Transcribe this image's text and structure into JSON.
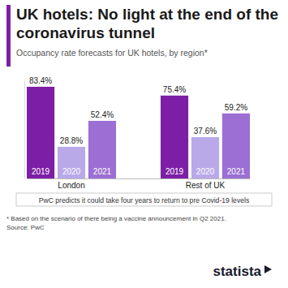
{
  "chart_data": {
    "type": "bar",
    "title": "UK hotels: No light at the end of the coronavirus tunnel",
    "subtitle": "Occupancy rate forecasts for UK hotels, by region*",
    "categories": [
      "London",
      "Rest of UK"
    ],
    "series": [
      {
        "name": "2019",
        "color": "#7d1fa6",
        "values": [
          83.4,
          75.4
        ],
        "value_labels": [
          "83.4%",
          "75.4%"
        ]
      },
      {
        "name": "2020",
        "color": "#b9a9e9",
        "values": [
          28.8,
          37.6
        ],
        "value_labels": [
          "28.8%",
          "37.6%"
        ]
      },
      {
        "name": "2021",
        "color": "#9b6fd3",
        "values": [
          52.4,
          59.2
        ],
        "value_labels": [
          "52.4%",
          "59.2%"
        ]
      }
    ],
    "ylim": [
      0,
      90
    ],
    "data_labels": true,
    "tick_labels": "x",
    "annotation": "PwC predicts it could take four years to return to pre Covid-19 levels",
    "footnote": "* Based on the scenario of there being a vaccine announcement in Q2 2021.",
    "source": "Source: PwC",
    "brand": "statista"
  }
}
